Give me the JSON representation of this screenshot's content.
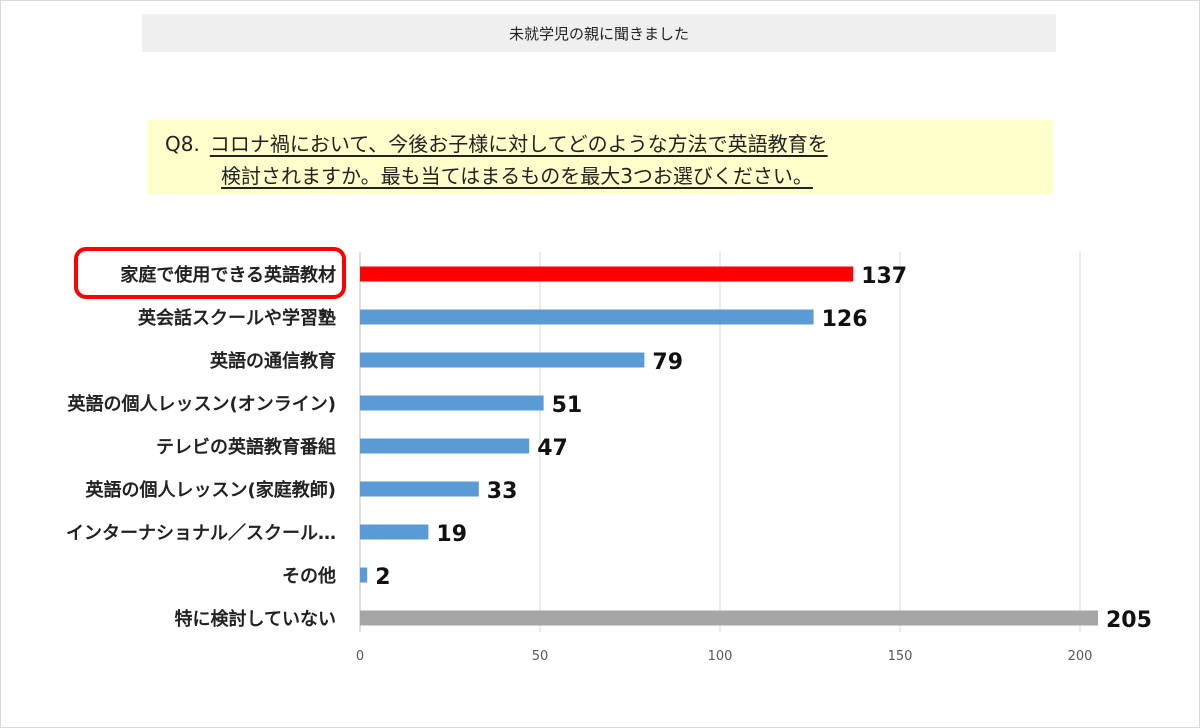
{
  "header": {
    "text": "未就学児の親に聞きました"
  },
  "question": {
    "number": "Q8.",
    "line1": "コロナ禍において、今後お子様に対してどのような方法で英語教育を",
    "line2": "検討されますか。最も当てはまるものを最大3つお選びください。"
  },
  "chart_data": {
    "type": "bar",
    "orientation": "horizontal",
    "categories": [
      "家庭で使用できる英語教材",
      "英会話スクールや学習塾",
      "英語の通信教育",
      "英語の個人レッスン(オンライン)",
      "テレビの英語教育番組",
      "英語の個人レッスン(家庭教師)",
      "インターナショナル／スクール…",
      "その他",
      "特に検討していない"
    ],
    "values": [
      137,
      126,
      79,
      51,
      47,
      33,
      19,
      2,
      205
    ],
    "bar_colors": [
      "#ff0000",
      "#5b9bd5",
      "#5b9bd5",
      "#5b9bd5",
      "#5b9bd5",
      "#5b9bd5",
      "#5b9bd5",
      "#5b9bd5",
      "#a5a5a5"
    ],
    "highlight_index": 0,
    "highlight_color": "#ff0000",
    "xlim": [
      0,
      200
    ],
    "xticks": [
      0,
      50,
      100,
      150,
      200
    ],
    "grid": true,
    "data_labels": true
  }
}
